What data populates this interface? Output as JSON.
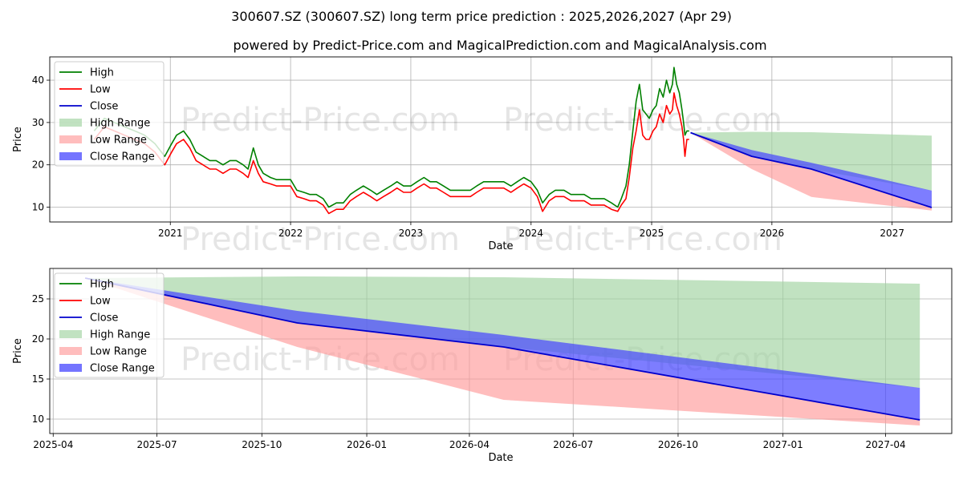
{
  "title": "300607.SZ (300607.SZ) long term price prediction : 2025,2026,2027 (Apr 29)",
  "subtitle": "powered by Predict-Price.com and MagicalPrediction.com and MagicalAnalysis.com",
  "watermark": "Predict-Price.com",
  "colors": {
    "high": "#008000",
    "low": "#ff0000",
    "close": "#0000cd",
    "high_range": "#9fd39f",
    "low_range": "#ff9a9a",
    "close_range": "#4646ff"
  },
  "legend": [
    "High",
    "Low",
    "Close",
    "High Range",
    "Low Range",
    "Close Range"
  ],
  "chart_data": [
    {
      "type": "line",
      "xlabel": "Date",
      "ylabel": "Price",
      "legend_position": "top-left",
      "grid": true,
      "xlim": [
        "2020-01-01",
        "2027-07-01"
      ],
      "ylim": [
        6.5,
        45.5
      ],
      "xticks": [
        {
          "date": "2021-01-01",
          "label": "2021"
        },
        {
          "date": "2022-01-01",
          "label": "2022"
        },
        {
          "date": "2023-01-01",
          "label": "2023"
        },
        {
          "date": "2024-01-01",
          "label": "2024"
        },
        {
          "date": "2025-01-01",
          "label": "2025"
        },
        {
          "date": "2026-01-01",
          "label": "2026"
        },
        {
          "date": "2027-01-01",
          "label": "2027"
        }
      ],
      "yticks": [
        10,
        20,
        30,
        40
      ],
      "history": {
        "dates": [
          "2020-05-15",
          "2020-06-15",
          "2020-07-15",
          "2020-08-15",
          "2020-09-15",
          "2020-10-15",
          "2020-11-15",
          "2020-12-15",
          "2021-01-05",
          "2021-01-20",
          "2021-02-10",
          "2021-03-01",
          "2021-03-20",
          "2021-04-10",
          "2021-05-01",
          "2021-05-20",
          "2021-06-10",
          "2021-07-01",
          "2021-07-20",
          "2021-08-10",
          "2021-08-25",
          "2021-09-10",
          "2021-09-25",
          "2021-10-10",
          "2021-11-01",
          "2021-11-20",
          "2021-12-10",
          "2022-01-01",
          "2022-01-20",
          "2022-02-10",
          "2022-03-01",
          "2022-03-20",
          "2022-04-10",
          "2022-04-27",
          "2022-05-20",
          "2022-06-10",
          "2022-07-01",
          "2022-07-20",
          "2022-08-10",
          "2022-09-01",
          "2022-09-20",
          "2022-10-10",
          "2022-11-01",
          "2022-11-20",
          "2022-12-10",
          "2023-01-01",
          "2023-01-20",
          "2023-02-10",
          "2023-03-01",
          "2023-03-20",
          "2023-04-10",
          "2023-05-01",
          "2023-05-20",
          "2023-06-10",
          "2023-07-01",
          "2023-07-20",
          "2023-08-10",
          "2023-09-01",
          "2023-09-20",
          "2023-10-10",
          "2023-11-01",
          "2023-11-20",
          "2023-12-10",
          "2024-01-01",
          "2024-01-20",
          "2024-02-05",
          "2024-02-25",
          "2024-03-15",
          "2024-04-10",
          "2024-05-01",
          "2024-05-20",
          "2024-06-10",
          "2024-07-01",
          "2024-07-20",
          "2024-08-10",
          "2024-09-01",
          "2024-09-20",
          "2024-10-01",
          "2024-10-15",
          "2024-10-25",
          "2024-11-05",
          "2024-11-15",
          "2024-11-25",
          "2024-12-05",
          "2024-12-15",
          "2024-12-25",
          "2025-01-05",
          "2025-01-15",
          "2025-01-25",
          "2025-02-05",
          "2025-02-15",
          "2025-02-25",
          "2025-03-05",
          "2025-03-10",
          "2025-03-18",
          "2025-03-26",
          "2025-04-03",
          "2025-04-08",
          "2025-04-12",
          "2025-04-18",
          "2025-04-25"
        ],
        "high": [
          28,
          31,
          30,
          29,
          28,
          27,
          25,
          22,
          25,
          27,
          28,
          26,
          23,
          22,
          21,
          21,
          20,
          21,
          21,
          20,
          19,
          24,
          20,
          18,
          17,
          16.5,
          16.5,
          16.5,
          14,
          13.5,
          13,
          13,
          12,
          10,
          11,
          11,
          13,
          14,
          15,
          14,
          13,
          14,
          15,
          16,
          15,
          15,
          16,
          17,
          16,
          16,
          15,
          14,
          14,
          14,
          14,
          15,
          16,
          16,
          16,
          16,
          15,
          16,
          17,
          16,
          14,
          11,
          13,
          14,
          14,
          13,
          13,
          13,
          12,
          12,
          12,
          11,
          10,
          12,
          15,
          20,
          28,
          35,
          39,
          33,
          32,
          31,
          33,
          34,
          38,
          36,
          40,
          37,
          39,
          43,
          39,
          37,
          33,
          30,
          27,
          28,
          28
        ],
        "low": [
          26,
          29,
          28,
          27,
          26,
          25,
          23,
          20,
          23,
          25,
          26,
          24,
          21,
          20,
          19,
          19,
          18,
          19,
          19,
          18,
          17,
          21,
          18,
          16,
          15.5,
          15,
          15,
          15,
          12.5,
          12,
          11.5,
          11.5,
          10.5,
          8.5,
          9.5,
          9.5,
          11.5,
          12.5,
          13.5,
          12.5,
          11.5,
          12.5,
          13.5,
          14.5,
          13.5,
          13.5,
          14.5,
          15.5,
          14.5,
          14.5,
          13.5,
          12.5,
          12.5,
          12.5,
          12.5,
          13.5,
          14.5,
          14.5,
          14.5,
          14.5,
          13.5,
          14.5,
          15.5,
          14.5,
          12.5,
          9,
          11.5,
          12.5,
          12.5,
          11.5,
          11.5,
          11.5,
          10.5,
          10.5,
          10.5,
          9.5,
          9,
          10.5,
          12,
          17,
          24,
          28,
          33,
          27,
          26,
          26,
          28,
          29,
          32,
          30,
          34,
          32,
          33,
          37,
          34,
          32,
          29,
          26,
          22,
          26,
          26
        ]
      },
      "forecast": {
        "dates": [
          "2025-04-29",
          "2025-11-01",
          "2026-05-01",
          "2027-05-01"
        ],
        "close": [
          27.6,
          22,
          19,
          9.9
        ],
        "high_range": {
          "upper": [
            27.6,
            27.8,
            27.7,
            26.9
          ],
          "lower": [
            27.6,
            22,
            19,
            13.9
          ]
        },
        "low_range": {
          "upper": [
            27.6,
            22,
            19,
            9.9
          ],
          "lower": [
            27.6,
            19,
            12.4,
            9.2
          ]
        },
        "close_range": {
          "upper": [
            27.6,
            23.5,
            20.5,
            13.9
          ],
          "lower": [
            27.6,
            22,
            19,
            9.9
          ]
        }
      }
    },
    {
      "type": "line",
      "xlabel": "Date",
      "ylabel": "Price",
      "legend_position": "top-left",
      "grid": true,
      "xlim": [
        "2025-03-29",
        "2027-05-29"
      ],
      "ylim": [
        8.2,
        28.8
      ],
      "xticks": [
        {
          "date": "2025-04-01",
          "label": "2025-04"
        },
        {
          "date": "2025-07-01",
          "label": "2025-07"
        },
        {
          "date": "2025-10-01",
          "label": "2025-10"
        },
        {
          "date": "2026-01-01",
          "label": "2026-01"
        },
        {
          "date": "2026-04-01",
          "label": "2026-04"
        },
        {
          "date": "2026-07-01",
          "label": "2026-07"
        },
        {
          "date": "2026-10-01",
          "label": "2026-10"
        },
        {
          "date": "2027-01-01",
          "label": "2027-01"
        },
        {
          "date": "2027-04-01",
          "label": "2027-04"
        }
      ],
      "yticks": [
        10,
        15,
        20,
        25
      ],
      "forecast": {
        "dates": [
          "2025-04-29",
          "2025-11-01",
          "2026-05-01",
          "2027-05-01"
        ],
        "close": [
          27.6,
          22,
          19,
          9.9
        ],
        "high_range": {
          "upper": [
            27.6,
            27.8,
            27.7,
            26.9
          ],
          "lower": [
            27.6,
            22,
            19,
            13.9
          ]
        },
        "low_range": {
          "upper": [
            27.6,
            22,
            19,
            9.9
          ],
          "lower": [
            27.6,
            19,
            12.4,
            9.2
          ]
        },
        "close_range": {
          "upper": [
            27.6,
            23.5,
            20.5,
            13.9
          ],
          "lower": [
            27.6,
            22,
            19,
            9.9
          ]
        }
      }
    }
  ]
}
